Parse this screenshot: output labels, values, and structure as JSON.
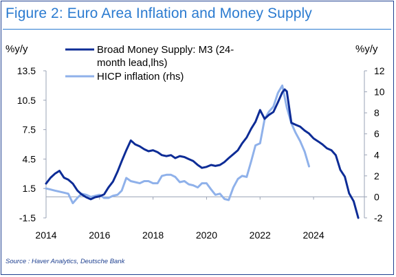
{
  "title": "Figure 2: Euro Area Inflation and Money Supply",
  "source": "Source : Haver Analytics, Deutsche Bank",
  "colors": {
    "title": "#2b7bd0",
    "m3": "#0d2c96",
    "hicp": "#8fb1ea",
    "axis": "#1d3f8f"
  },
  "chart_data": {
    "type": "line",
    "left_unit": "%y/y",
    "right_unit": "%y/y",
    "x_ticks": [
      "2014",
      "2016",
      "2018",
      "2020",
      "2022",
      "2024"
    ],
    "xlim": [
      2014,
      2025.9
    ],
    "left_axis": {
      "ticks": [
        "13.5",
        "10.5",
        "7.5",
        "4.5",
        "1.5",
        "-1.5"
      ],
      "lim": [
        -1.5,
        13.5
      ]
    },
    "right_axis": {
      "ticks": [
        "12",
        "10",
        "8",
        "6",
        "4",
        "2",
        "0",
        "-2"
      ],
      "lim": [
        -2,
        12
      ]
    },
    "legend": [
      "Broad Money Supply: M3 (24-",
      "month lead,lhs)",
      "HICP inflation (rhs)"
    ],
    "series": [
      {
        "name": "Broad Money Supply: M3 (24-month lead,lhs)",
        "axis": "left",
        "x": [
          2014.0,
          2014.17,
          2014.33,
          2014.5,
          2014.67,
          2014.83,
          2015.0,
          2015.17,
          2015.33,
          2015.5,
          2015.67,
          2015.83,
          2016.0,
          2016.17,
          2016.33,
          2016.5,
          2016.67,
          2016.83,
          2017.0,
          2017.17,
          2017.33,
          2017.5,
          2017.67,
          2017.83,
          2018.0,
          2018.17,
          2018.33,
          2018.5,
          2018.67,
          2018.83,
          2019.0,
          2019.17,
          2019.33,
          2019.5,
          2019.67,
          2019.83,
          2020.0,
          2020.17,
          2020.33,
          2020.5,
          2020.67,
          2020.83,
          2021.0,
          2021.17,
          2021.33,
          2021.5,
          2021.67,
          2021.83,
          2022.0,
          2022.17,
          2022.33,
          2022.5,
          2022.67,
          2022.83,
          2022.92,
          2023.0,
          2023.17,
          2023.33,
          2023.5,
          2023.67,
          2023.83,
          2024.0,
          2024.17,
          2024.33,
          2024.5,
          2024.67,
          2024.83,
          2025.0,
          2025.17,
          2025.33,
          2025.5,
          2025.67
        ],
        "values": [
          2.0,
          2.6,
          3.0,
          3.3,
          2.6,
          2.4,
          2.0,
          1.3,
          0.9,
          0.6,
          0.4,
          0.6,
          0.7,
          0.9,
          1.6,
          2.2,
          3.2,
          4.3,
          5.4,
          6.4,
          6.0,
          5.8,
          5.5,
          5.3,
          5.4,
          5.2,
          4.9,
          4.8,
          4.9,
          4.6,
          4.8,
          4.7,
          4.5,
          4.3,
          3.9,
          3.6,
          3.7,
          3.9,
          3.8,
          3.9,
          4.2,
          4.6,
          5.0,
          5.4,
          6.1,
          6.7,
          7.6,
          8.3,
          9.5,
          8.6,
          9.0,
          9.3,
          10.3,
          11.3,
          11.6,
          11.4,
          8.2,
          8.0,
          7.8,
          7.4,
          7.1,
          6.6,
          6.3,
          6.0,
          5.6,
          5.4,
          4.9,
          3.4,
          2.7,
          1.0,
          0.2,
          -1.5
        ]
      },
      {
        "name": "HICP inflation (rhs)",
        "axis": "right",
        "x": [
          2014.0,
          2014.17,
          2014.33,
          2014.5,
          2014.67,
          2014.83,
          2015.0,
          2015.17,
          2015.33,
          2015.5,
          2015.67,
          2015.83,
          2016.0,
          2016.17,
          2016.33,
          2016.5,
          2016.67,
          2016.83,
          2017.0,
          2017.17,
          2017.33,
          2017.5,
          2017.67,
          2017.83,
          2018.0,
          2018.17,
          2018.33,
          2018.5,
          2018.67,
          2018.83,
          2019.0,
          2019.17,
          2019.33,
          2019.5,
          2019.67,
          2019.83,
          2020.0,
          2020.17,
          2020.33,
          2020.5,
          2020.67,
          2020.83,
          2021.0,
          2021.17,
          2021.33,
          2021.5,
          2021.67,
          2021.83,
          2022.0,
          2022.17,
          2022.33,
          2022.5,
          2022.67,
          2022.83,
          2023.0,
          2023.17,
          2023.33,
          2023.5,
          2023.67,
          2023.83
        ],
        "values": [
          0.8,
          0.7,
          0.6,
          0.5,
          0.4,
          0.3,
          -0.6,
          -0.1,
          0.3,
          0.2,
          0.0,
          0.1,
          0.2,
          -0.1,
          -0.1,
          0.1,
          0.2,
          0.6,
          1.8,
          1.5,
          1.4,
          1.3,
          1.5,
          1.5,
          1.3,
          1.3,
          2.0,
          2.1,
          2.1,
          1.9,
          1.4,
          1.5,
          1.2,
          1.1,
          0.9,
          1.3,
          1.3,
          0.7,
          0.2,
          0.3,
          -0.2,
          -0.3,
          0.9,
          1.7,
          2.0,
          1.9,
          3.4,
          4.9,
          5.1,
          7.4,
          8.1,
          8.6,
          9.9,
          10.6,
          8.5,
          7.0,
          6.1,
          5.3,
          4.3,
          2.9
        ]
      }
    ]
  }
}
